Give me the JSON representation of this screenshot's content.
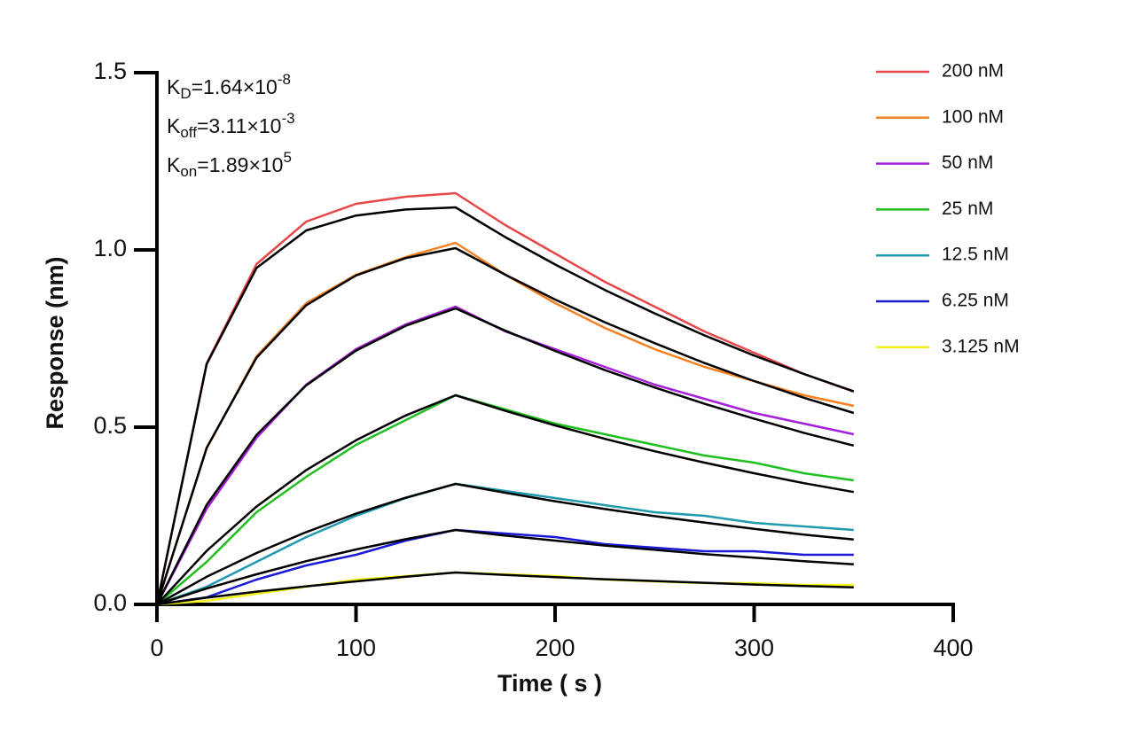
{
  "chart_data": {
    "type": "line",
    "xlabel": "Time ( s )",
    "ylabel": "Response (nm)",
    "annotations": [
      {
        "symbol": "K",
        "sub": "D",
        "text": "=1.64×10",
        "sup": "-8"
      },
      {
        "symbol": "K",
        "sub": "off",
        "text": "=3.11×10",
        "sup": "-3"
      },
      {
        "symbol": "K",
        "sub": "on",
        "text": "=1.89×10",
        "sup": "5"
      }
    ],
    "x": [
      0,
      25,
      50,
      75,
      100,
      125,
      150,
      175,
      200,
      225,
      250,
      275,
      300,
      325,
      350
    ],
    "series": [
      {
        "name": "200 nM",
        "color": "#e8474a",
        "values": [
          0,
          0.68,
          0.96,
          1.08,
          1.13,
          1.15,
          1.16,
          1.07,
          0.99,
          0.91,
          0.84,
          0.77,
          0.71,
          0.65,
          0.6
        ]
      },
      {
        "name": "100 nM",
        "color": "#f58220",
        "values": [
          0,
          0.44,
          0.7,
          0.85,
          0.93,
          0.98,
          1.02,
          0.93,
          0.85,
          0.78,
          0.72,
          0.67,
          0.63,
          0.59,
          0.56
        ]
      },
      {
        "name": "50 nM",
        "color": "#a61fd9",
        "values": [
          0,
          0.27,
          0.47,
          0.62,
          0.72,
          0.79,
          0.84,
          0.77,
          0.72,
          0.67,
          0.62,
          0.58,
          0.54,
          0.51,
          0.48
        ]
      },
      {
        "name": "25 nM",
        "color": "#1fbf1f",
        "values": [
          0,
          0.12,
          0.26,
          0.36,
          0.45,
          0.52,
          0.59,
          0.55,
          0.51,
          0.48,
          0.45,
          0.42,
          0.4,
          0.37,
          0.35
        ]
      },
      {
        "name": "12.5 nM",
        "color": "#1f9aae",
        "values": [
          0,
          0.05,
          0.12,
          0.19,
          0.25,
          0.3,
          0.34,
          0.32,
          0.3,
          0.28,
          0.26,
          0.25,
          0.23,
          0.22,
          0.21
        ]
      },
      {
        "name": "6.25 nM",
        "color": "#1a1ad6",
        "values": [
          0,
          0.02,
          0.07,
          0.11,
          0.14,
          0.18,
          0.21,
          0.2,
          0.19,
          0.17,
          0.16,
          0.15,
          0.15,
          0.14,
          0.14
        ]
      },
      {
        "name": "3.125 nM",
        "color": "#f2f21a",
        "values": [
          0,
          0.01,
          0.03,
          0.05,
          0.07,
          0.08,
          0.09,
          0.085,
          0.08,
          0.07,
          0.065,
          0.06,
          0.06,
          0.055,
          0.055
        ]
      }
    ],
    "fit_series": [
      {
        "color": "#000000",
        "values": [
          0,
          0.678,
          0.949,
          1.055,
          1.097,
          1.114,
          1.12,
          1.036,
          0.959,
          0.887,
          0.821,
          0.759,
          0.702,
          0.65,
          0.601
        ]
      },
      {
        "color": "#000000",
        "values": [
          0,
          0.442,
          0.696,
          0.844,
          0.928,
          0.977,
          1.005,
          0.93,
          0.86,
          0.796,
          0.737,
          0.681,
          0.63,
          0.583,
          0.54
        ]
      },
      {
        "color": "#000000",
        "values": [
          0,
          0.281,
          0.478,
          0.618,
          0.716,
          0.786,
          0.835,
          0.772,
          0.715,
          0.661,
          0.612,
          0.566,
          0.524,
          0.484,
          0.448
        ]
      },
      {
        "color": "#000000",
        "values": [
          0,
          0.151,
          0.276,
          0.379,
          0.463,
          0.533,
          0.59,
          0.546,
          0.505,
          0.467,
          0.432,
          0.4,
          0.37,
          0.342,
          0.317
        ]
      },
      {
        "color": "#000000",
        "values": [
          0,
          0.078,
          0.145,
          0.204,
          0.256,
          0.301,
          0.34,
          0.315,
          0.291,
          0.269,
          0.249,
          0.231,
          0.213,
          0.197,
          0.183
        ]
      },
      {
        "color": "#000000",
        "values": [
          0,
          0.045,
          0.085,
          0.122,
          0.155,
          0.184,
          0.21,
          0.194,
          0.18,
          0.166,
          0.154,
          0.142,
          0.132,
          0.122,
          0.113
        ]
      },
      {
        "color": "#000000",
        "values": [
          0,
          0.019,
          0.036,
          0.051,
          0.065,
          0.078,
          0.09,
          0.083,
          0.077,
          0.071,
          0.066,
          0.061,
          0.056,
          0.052,
          0.048
        ]
      }
    ],
    "xlim": [
      0,
      400
    ],
    "xticks": [
      0,
      100,
      200,
      300,
      400
    ],
    "ylim": [
      0,
      1.5
    ],
    "yticks": [
      {
        "value": 0,
        "label": "0.0"
      },
      0.5,
      {
        "value": 1,
        "label": "1.0"
      },
      {
        "value": 1.5,
        "label": "1.5"
      }
    ],
    "grid": false,
    "legend": "right"
  }
}
